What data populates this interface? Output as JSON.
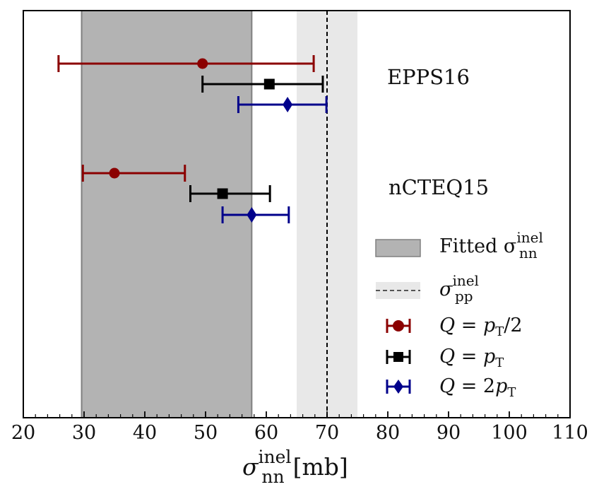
{
  "chart_data": {
    "type": "errorbar",
    "xlim": [
      20,
      110
    ],
    "xticks": [
      20,
      30,
      40,
      50,
      60,
      70,
      80,
      90,
      100,
      110
    ],
    "xlabel": {
      "symbol": "σ",
      "superscript": "inel",
      "subscript": "nn",
      "unit": "[mb]"
    },
    "bands": [
      {
        "name": "Fitted σ_nn^inel",
        "x_from": 29.6,
        "x_to": 57.6,
        "color": "#b3b3b3",
        "edge": "#808080"
      },
      {
        "name": "σ_pp^inel",
        "x_from": 65.0,
        "x_to": 75.0,
        "color": "#e8e8e8",
        "reference_line": 70.0
      }
    ],
    "groups": [
      {
        "label": "EPPS16",
        "points": [
          {
            "series": "Q=pT/2",
            "value": 49.5,
            "low": 25.8,
            "high": 67.8
          },
          {
            "series": "Q=pT",
            "value": 60.5,
            "low": 49.5,
            "high": 69.3
          },
          {
            "series": "Q=2pT",
            "value": 63.5,
            "low": 55.4,
            "high": 69.9
          }
        ]
      },
      {
        "label": "nCTEQ15",
        "points": [
          {
            "series": "Q=pT/2",
            "value": 35.0,
            "low": 29.8,
            "high": 46.6
          },
          {
            "series": "Q=pT",
            "value": 52.8,
            "low": 47.5,
            "high": 60.6
          },
          {
            "series": "Q=2pT",
            "value": 57.6,
            "low": 52.8,
            "high": 63.7
          }
        ]
      }
    ],
    "series": [
      {
        "name": "Q=pT/2",
        "marker": "circle",
        "color": "#8b0000"
      },
      {
        "name": "Q=pT",
        "marker": "square",
        "color": "#000000"
      },
      {
        "name": "Q=2pT",
        "marker": "diamond",
        "color": "#00008b"
      }
    ],
    "legend": {
      "position": "right",
      "fitted": {
        "main": "Fitted σ",
        "sup": "inel",
        "sub": "nn"
      },
      "pp": {
        "main": "σ",
        "sup": "inel",
        "sub": "pp"
      },
      "q_half": {
        "lhs": "Q",
        "eq": " = ",
        "p": "p",
        "sub": "T",
        "tail": "/2"
      },
      "q_one": {
        "lhs": "Q",
        "eq": " = ",
        "p": "p",
        "sub": "T",
        "tail": ""
      },
      "q_two": {
        "lhs": "Q",
        "eq": " = 2",
        "p": "p",
        "sub": "T",
        "tail": ""
      }
    }
  }
}
